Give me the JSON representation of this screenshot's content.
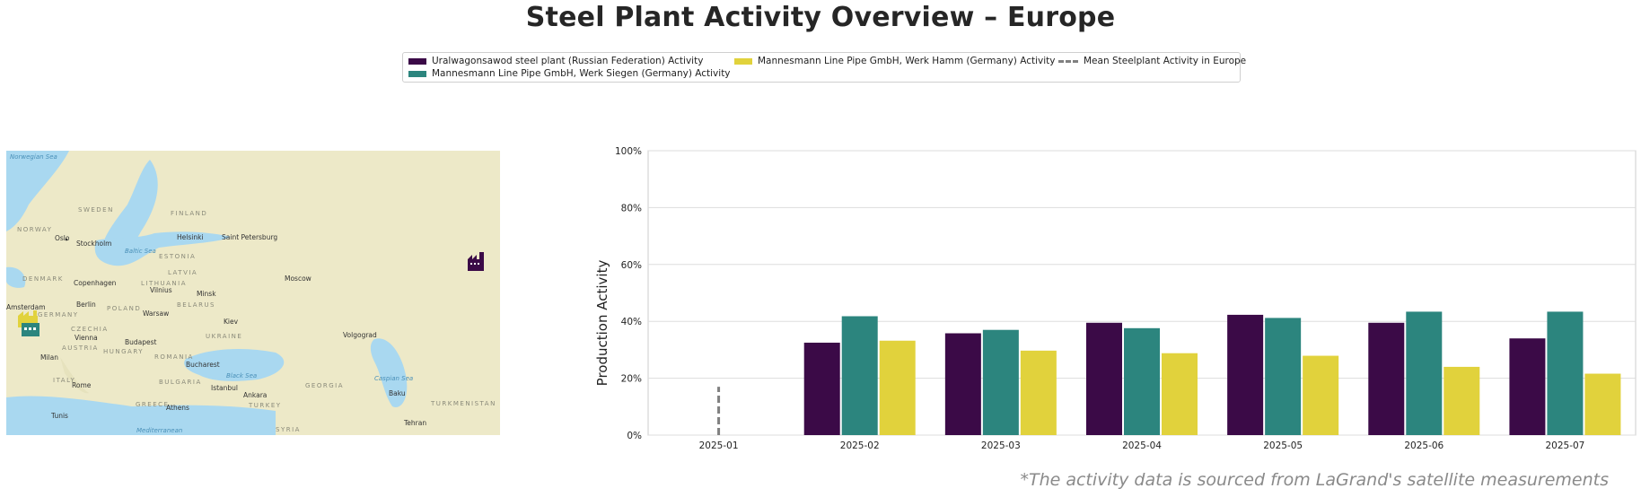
{
  "title": "Steel Plant Activity Overview – Europe",
  "footnote": "*The activity data is sourced from LaGrand's satellite measurements",
  "legend": {
    "items": [
      {
        "label": "Uralwagonsawod steel plant (Russian Federation) Activity",
        "color": "#3b0a47",
        "kind": "bar"
      },
      {
        "label": "Mannesmann Line Pipe GmbH, Werk Siegen (Germany) Activity",
        "color": "#2c857e",
        "kind": "bar"
      },
      {
        "label": "Mannesmann Line Pipe GmbH, Werk Hamm (Germany) Activity",
        "color": "#e1d23c",
        "kind": "bar"
      },
      {
        "label": "Mean Steelplant Activity in Europe",
        "color": "#808080",
        "kind": "dashed-line"
      }
    ]
  },
  "map": {
    "water_color": "#a9d8f0",
    "land_color": "#ede9c8",
    "seas": [
      "Norwegian Sea",
      "Baltic Sea",
      "Black Sea",
      "Caspian Sea",
      "Mediterranean"
    ],
    "countries": [
      "SWEDEN",
      "FINLAND",
      "NORWAY",
      "ESTONIA",
      "LATVIA",
      "DENMARK",
      "LITHUANIA",
      "BELARUS",
      "POLAND",
      "GERMANY",
      "CZECHIA",
      "UKRAINE",
      "AUSTRIA",
      "HUNGARY",
      "ROMANIA",
      "BULGARIA",
      "ITALY",
      "GREECE",
      "GEORGIA",
      "TURKEY",
      "TURKMENISTAN",
      "SYRIA"
    ],
    "cities": [
      "Oslo",
      "Stockholm",
      "Helsinki",
      "Saint Petersburg",
      "Copenhagen",
      "Vilnius",
      "Minsk",
      "Moscow",
      "Berlin",
      "Amsterdam",
      "Warsaw",
      "Kiev",
      "Vienna",
      "Budapest",
      "Milan",
      "Volgograd",
      "Bucharest",
      "Rome",
      "Istanbul",
      "Ankara",
      "Baku",
      "Athens",
      "Tunis",
      "Tehran"
    ],
    "markers": [
      {
        "name": "Uralwagonsawod steel plant",
        "color": "#3b0a47",
        "icon": "factory-icon"
      },
      {
        "name": "Mannesmann Werk Hamm",
        "color": "#e1d23c",
        "icon": "factory-icon"
      },
      {
        "name": "Mannesmann Werk Siegen",
        "color": "#2c857e",
        "icon": "factory-icon"
      }
    ]
  },
  "chart_data": {
    "type": "bar",
    "ylabel": "Production Activity",
    "xlabel": "",
    "ylim": [
      0,
      100
    ],
    "yticks": [
      0,
      20,
      40,
      60,
      80,
      100
    ],
    "ytick_labels": [
      "0%",
      "20%",
      "40%",
      "60%",
      "80%",
      "100%"
    ],
    "grid": "horizontal",
    "categories": [
      "2025-01",
      "2025-02",
      "2025-03",
      "2025-04",
      "2025-05",
      "2025-06",
      "2025-07"
    ],
    "series": [
      {
        "name": "Uralwagonsawod steel plant (Russian Federation) Activity",
        "color": "#3b0a47",
        "values": [
          null,
          32.5,
          35.8,
          39.5,
          42.3,
          39.5,
          34.0
        ]
      },
      {
        "name": "Mannesmann Line Pipe GmbH, Werk Siegen (Germany) Activity",
        "color": "#2c857e",
        "values": [
          null,
          41.8,
          37.0,
          37.6,
          41.2,
          43.4,
          43.4
        ]
      },
      {
        "name": "Mannesmann Line Pipe GmbH, Werk Hamm (Germany) Activity",
        "color": "#e1d23c",
        "values": [
          null,
          33.2,
          29.7,
          28.8,
          27.9,
          24.0,
          21.6
        ]
      }
    ],
    "mean_line": {
      "name": "Mean Steelplant Activity in Europe",
      "color": "#808080",
      "x": [
        "2025-01",
        "2025-01"
      ],
      "y": [
        0,
        17
      ]
    }
  }
}
